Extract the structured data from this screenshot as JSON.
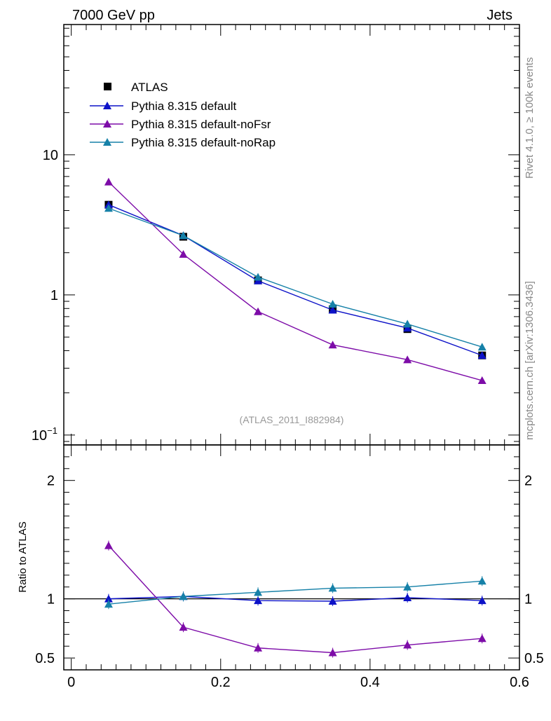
{
  "header": {
    "left": "7000 GeV pp",
    "right": "Jets"
  },
  "side_labels": {
    "rivet": "Rivet 4.1.0, ≥ 100k events",
    "mcplots": "mcplots.cern.ch [arXiv:1306.3436]"
  },
  "analysis_label": "(ATLAS_2011_I882984)",
  "colors": {
    "atlas": "#000000",
    "default": "#0d12c8",
    "noFsr": "#7d0ca8",
    "noRap": "#1681a8"
  },
  "chart_data": [
    {
      "type": "line",
      "name": "main",
      "yscale": "log",
      "xlim": [
        -0.01,
        0.6
      ],
      "ylim": [
        0.085,
        85
      ],
      "x": [
        0.05,
        0.15,
        0.25,
        0.35,
        0.45,
        0.55
      ],
      "yticks": [
        {
          "value": 0.1,
          "label": "10",
          "sup": "−1"
        },
        {
          "value": 1,
          "label": "1"
        },
        {
          "value": 10,
          "label": "10"
        }
      ],
      "series": [
        {
          "name": "ATLAS",
          "marker": "square",
          "values": [
            4.4,
            2.6,
            1.27,
            0.79,
            0.57,
            0.37
          ]
        },
        {
          "name": "Pythia 8.315 default",
          "marker": "triangle",
          "values": [
            4.4,
            2.65,
            1.26,
            0.78,
            0.58,
            0.37
          ]
        },
        {
          "name": "Pythia 8.315 default-noFsr",
          "marker": "triangle",
          "values": [
            6.4,
            1.95,
            0.76,
            0.44,
            0.345,
            0.245
          ]
        },
        {
          "name": "Pythia 8.315 default-noRap",
          "marker": "triangle",
          "values": [
            4.15,
            2.65,
            1.34,
            0.86,
            0.62,
            0.425
          ]
        }
      ]
    },
    {
      "type": "line",
      "name": "ratio",
      "ylabel": "Ratio to ATLAS",
      "xlim": [
        -0.01,
        0.6
      ],
      "ylim": [
        0.4,
        2.3
      ],
      "x": [
        0.05,
        0.15,
        0.25,
        0.35,
        0.45,
        0.55
      ],
      "xticks": [
        {
          "value": 0,
          "label": "0"
        },
        {
          "value": 0.2,
          "label": "0.2"
        },
        {
          "value": 0.4,
          "label": "0.4"
        },
        {
          "value": 0.6,
          "label": "0.6"
        }
      ],
      "yticks": [
        {
          "value": 0.5,
          "label": "0.5"
        },
        {
          "value": 1,
          "label": "1"
        },
        {
          "value": 2,
          "label": "2"
        }
      ],
      "series": [
        {
          "name": "Pythia 8.315 default",
          "values": [
            1.0,
            1.02,
            0.985,
            0.98,
            1.01,
            0.985
          ]
        },
        {
          "name": "Pythia 8.315 default-noFsr",
          "values": [
            1.45,
            0.76,
            0.585,
            0.545,
            0.61,
            0.665
          ]
        },
        {
          "name": "Pythia 8.315 default-noRap",
          "values": [
            0.955,
            1.02,
            1.055,
            1.09,
            1.1,
            1.15
          ]
        }
      ]
    }
  ]
}
